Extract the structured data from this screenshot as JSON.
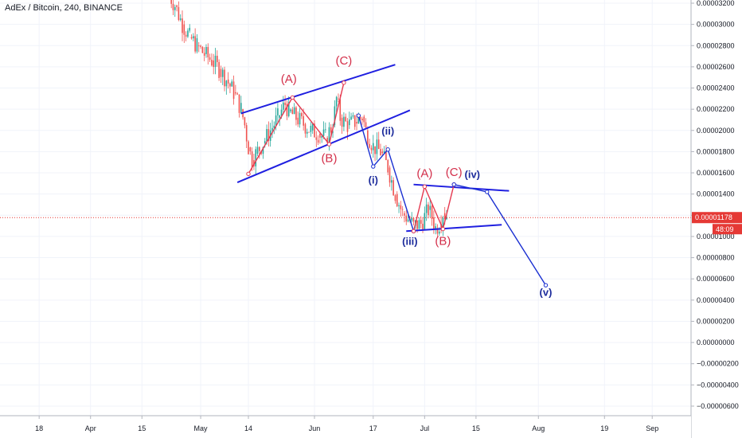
{
  "header": {
    "symbol_title": "AdEx / Bitcoin, 240, BINANCE"
  },
  "colors": {
    "up_candle": "#26a69a",
    "down_candle": "#ef5350",
    "wave_red": "#e53950",
    "wave_blue": "#1a2fd1",
    "channel_blue": "#1f1fe0",
    "label_red": "#d32f4a",
    "label_blue": "#1d2c9c",
    "price_line": "#e53935",
    "grid": "#f0f3fa",
    "price_badge_bg": "#e53935",
    "price_badge_fg": "#ffffff"
  },
  "current_price": {
    "value": 1.178e-05,
    "label": "0.00001178",
    "countdown": "48:09"
  },
  "chart_data": {
    "type": "line",
    "title": "AdEx / Bitcoin, 240, BINANCE",
    "y_axis": {
      "ticks": [
        3.2e-05,
        3e-05,
        2.8e-05,
        2.6e-05,
        2.4e-05,
        2.2e-05,
        2e-05,
        1.8e-05,
        1.6e-05,
        1.4e-05,
        1.2e-05,
        1e-05,
        8e-06,
        6e-06,
        4e-06,
        2e-06,
        0.0,
        -2e-06,
        -4e-06,
        -6e-06
      ],
      "tick_labels": [
        "0.00003200",
        "0.00003000",
        "0.00002800",
        "0.00002600",
        "0.00002400",
        "0.00002200",
        "0.00002000",
        "0.00001800",
        "0.00001600",
        "0.00001400",
        "0.00001200",
        "0.00001000",
        "0.00000800",
        "0.00000600",
        "0.00000400",
        "0.00000200",
        "0.00000000",
        "−0.00000200",
        "−0.00000400",
        "−0.00000600"
      ]
    },
    "x_axis": {
      "ticks": [
        "2019-03-18",
        "2019-04-01",
        "2019-04-15",
        "2019-05-01",
        "2019-05-14",
        "2019-06-01",
        "2019-06-17",
        "2019-07-01",
        "2019-07-15",
        "2019-08-01",
        "2019-08-19",
        "2019-09-01"
      ],
      "tick_labels": [
        "18",
        "Apr",
        "15",
        "May",
        "14",
        "Jun",
        "17",
        "Jul",
        "15",
        "Aug",
        "19",
        "Sep"
      ]
    },
    "grid": true,
    "price_series": {
      "name": "",
      "points": [
        [
          "2019-04-22",
          3.3e-05
        ],
        [
          "2019-04-24",
          3.18e-05
        ],
        [
          "2019-04-26",
          3e-05
        ],
        [
          "2019-04-28",
          2.88e-05
        ],
        [
          "2019-04-30",
          2.8e-05
        ],
        [
          "2019-05-02",
          2.72e-05
        ],
        [
          "2019-05-04",
          2.66e-05
        ],
        [
          "2019-05-06",
          2.58e-05
        ],
        [
          "2019-05-08",
          2.48e-05
        ],
        [
          "2019-05-10",
          2.36e-05
        ],
        [
          "2019-05-12",
          2.2e-05
        ],
        [
          "2019-05-13",
          2.05e-05
        ],
        [
          "2019-05-14",
          1.84e-05
        ],
        [
          "2019-05-15",
          1.72e-05
        ],
        [
          "2019-05-16",
          1.78e-05
        ],
        [
          "2019-05-18",
          1.88e-05
        ],
        [
          "2019-05-20",
          2e-05
        ],
        [
          "2019-05-22",
          2.12e-05
        ],
        [
          "2019-05-24",
          2.25e-05
        ],
        [
          "2019-05-25",
          2.18e-05
        ],
        [
          "2019-05-27",
          2.12e-05
        ],
        [
          "2019-05-29",
          2.06e-05
        ],
        [
          "2019-05-31",
          2e-05
        ],
        [
          "2019-06-02",
          1.97e-05
        ],
        [
          "2019-06-04",
          1.93e-05
        ],
        [
          "2019-06-06",
          2.05e-05
        ],
        [
          "2019-06-07",
          2.3e-05
        ],
        [
          "2019-06-08",
          2.12e-05
        ],
        [
          "2019-06-10",
          2.05e-05
        ],
        [
          "2019-06-12",
          2.08e-05
        ],
        [
          "2019-06-14",
          2.13e-05
        ],
        [
          "2019-06-15",
          2e-05
        ],
        [
          "2019-06-17",
          1.85e-05
        ],
        [
          "2019-06-19",
          1.8e-05
        ],
        [
          "2019-06-21",
          1.65e-05
        ],
        [
          "2019-06-23",
          1.4e-05
        ],
        [
          "2019-06-25",
          1.22e-05
        ],
        [
          "2019-06-27",
          1.15e-05
        ],
        [
          "2019-06-28",
          1.1e-05
        ],
        [
          "2019-06-30",
          1.12e-05
        ],
        [
          "2019-07-02",
          1.25e-05
        ],
        [
          "2019-07-03",
          1.18e-05
        ],
        [
          "2019-07-04",
          1.08e-05
        ],
        [
          "2019-07-05",
          1.12e-05
        ],
        [
          "2019-07-06",
          1.22e-05
        ],
        [
          "2019-07-07",
          1.2e-05
        ]
      ]
    },
    "wave_paths": [
      {
        "color_key": "wave_red",
        "points": [
          [
            "2019-05-14",
            1.59e-05
          ],
          [
            "2019-05-26",
            2.31e-05
          ],
          [
            "2019-06-05",
            1.87e-05
          ],
          [
            "2019-06-09",
            2.45e-05
          ]
        ]
      },
      {
        "color_key": "wave_blue",
        "points": [
          [
            "2019-06-13",
            2.14e-05
          ],
          [
            "2019-06-17",
            1.66e-05
          ],
          [
            "2019-06-21",
            1.82e-05
          ],
          [
            "2019-06-28",
            1.05e-05
          ]
        ]
      },
      {
        "color_key": "wave_red",
        "points": [
          [
            "2019-06-28",
            1.05e-05
          ],
          [
            "2019-07-01",
            1.47e-05
          ],
          [
            "2019-07-06",
            1.07e-05
          ],
          [
            "2019-07-09",
            1.49e-05
          ]
        ]
      },
      {
        "color_key": "wave_blue",
        "points": [
          [
            "2019-07-09",
            1.49e-05
          ],
          [
            "2019-07-18",
            1.42e-05
          ],
          [
            "2019-08-03",
            5.4e-06
          ]
        ]
      }
    ],
    "channel_lines": [
      {
        "from": [
          "2019-05-12",
          2.16e-05
        ],
        "to": [
          "2019-06-23",
          2.62e-05
        ]
      },
      {
        "from": [
          "2019-05-11",
          1.51e-05
        ],
        "to": [
          "2019-06-27",
          2.19e-05
        ]
      },
      {
        "from": [
          "2019-06-28",
          1.49e-05
        ],
        "to": [
          "2019-07-24",
          1.43e-05
        ]
      },
      {
        "from": [
          "2019-06-26",
          1.05e-05
        ],
        "to": [
          "2019-07-22",
          1.11e-05
        ]
      }
    ],
    "wave_labels": [
      {
        "text": "(A)",
        "color_key": "label_red",
        "at": [
          "2019-05-25",
          2.45e-05
        ]
      },
      {
        "text": "(C)",
        "color_key": "label_red",
        "at": [
          "2019-06-09",
          2.62e-05
        ]
      },
      {
        "text": "(B)",
        "color_key": "label_red",
        "at": [
          "2019-06-05",
          1.7e-05
        ]
      },
      {
        "text": "(i)",
        "color_key": "label_blue",
        "at": [
          "2019-06-17",
          1.5e-05
        ]
      },
      {
        "text": "(ii)",
        "color_key": "label_blue",
        "at": [
          "2019-06-21",
          1.96e-05
        ]
      },
      {
        "text": "(iii)",
        "color_key": "label_blue",
        "at": [
          "2019-06-27",
          9.2e-06
        ]
      },
      {
        "text": "(A)",
        "color_key": "label_red",
        "at": [
          "2019-07-01",
          1.56e-05
        ]
      },
      {
        "text": "(C)",
        "color_key": "label_red",
        "at": [
          "2019-07-09",
          1.57e-05
        ]
      },
      {
        "text": "(B)",
        "color_key": "label_red",
        "at": [
          "2019-07-06",
          9.2e-06
        ]
      },
      {
        "text": "(iv)",
        "color_key": "label_blue",
        "at": [
          "2019-07-14",
          1.55e-05
        ]
      },
      {
        "text": "(v)",
        "color_key": "label_blue",
        "at": [
          "2019-08-03",
          4.4e-06
        ]
      }
    ]
  }
}
